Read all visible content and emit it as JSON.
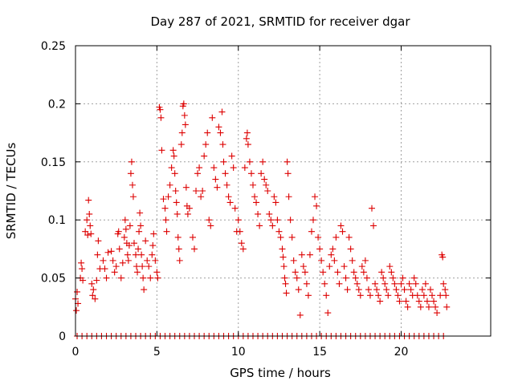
{
  "chart_data": {
    "type": "scatter",
    "title": "Day 287 of 2021, SRMTID for receiver dgar",
    "xlabel": "GPS time / hours",
    "ylabel": "SRMTID / TECUs",
    "xlim": [
      0,
      25.5
    ],
    "ylim": [
      0,
      0.25
    ],
    "xticks": [
      0,
      5,
      10,
      15,
      20
    ],
    "xtick_labels": [
      "0",
      "5",
      "10",
      "15",
      "20"
    ],
    "yticks": [
      0,
      0.05,
      0.1,
      0.15,
      0.2,
      0.25
    ],
    "ytick_labels": [
      "0",
      "0.05",
      "0.1",
      "0.15",
      "0.2",
      "0.25"
    ],
    "grid": true,
    "marker": "+",
    "color": "#dd0000",
    "series": [
      {
        "name": "SRMTID",
        "points": [
          [
            0.0,
            0.032
          ],
          [
            0.05,
            0.022
          ],
          [
            0.1,
            0.038
          ],
          [
            0.15,
            0.028
          ],
          [
            0.3,
            0.05
          ],
          [
            0.35,
            0.063
          ],
          [
            0.4,
            0.058
          ],
          [
            0.45,
            0.048
          ],
          [
            0.6,
            0.09
          ],
          [
            0.7,
            0.1
          ],
          [
            0.75,
            0.087
          ],
          [
            0.8,
            0.117
          ],
          [
            0.85,
            0.105
          ],
          [
            0.9,
            0.095
          ],
          [
            0.95,
            0.088
          ],
          [
            1.0,
            0.045
          ],
          [
            1.05,
            0.035
          ],
          [
            1.1,
            0.04
          ],
          [
            1.2,
            0.032
          ],
          [
            1.3,
            0.048
          ],
          [
            1.35,
            0.07
          ],
          [
            1.4,
            0.082
          ],
          [
            1.5,
            0.058
          ],
          [
            1.7,
            0.065
          ],
          [
            1.8,
            0.058
          ],
          [
            1.9,
            0.05
          ],
          [
            2.0,
            0.072
          ],
          [
            2.2,
            0.073
          ],
          [
            2.3,
            0.065
          ],
          [
            2.4,
            0.055
          ],
          [
            2.5,
            0.06
          ],
          [
            2.6,
            0.088
          ],
          [
            2.65,
            0.09
          ],
          [
            2.7,
            0.075
          ],
          [
            2.8,
            0.05
          ],
          [
            2.9,
            0.063
          ],
          [
            3.0,
            0.085
          ],
          [
            3.05,
            0.1
          ],
          [
            3.1,
            0.092
          ],
          [
            3.15,
            0.08
          ],
          [
            3.2,
            0.07
          ],
          [
            3.25,
            0.065
          ],
          [
            3.3,
            0.078
          ],
          [
            3.35,
            0.095
          ],
          [
            3.4,
            0.14
          ],
          [
            3.45,
            0.15
          ],
          [
            3.5,
            0.13
          ],
          [
            3.55,
            0.12
          ],
          [
            3.6,
            0.08
          ],
          [
            3.7,
            0.07
          ],
          [
            3.75,
            0.06
          ],
          [
            3.8,
            0.055
          ],
          [
            3.85,
            0.075
          ],
          [
            3.9,
            0.09
          ],
          [
            3.95,
            0.106
          ],
          [
            4.0,
            0.095
          ],
          [
            4.05,
            0.07
          ],
          [
            4.1,
            0.06
          ],
          [
            4.15,
            0.05
          ],
          [
            4.2,
            0.04
          ],
          [
            4.3,
            0.082
          ],
          [
            4.4,
            0.065
          ],
          [
            4.5,
            0.06
          ],
          [
            4.6,
            0.05
          ],
          [
            4.7,
            0.07
          ],
          [
            4.75,
            0.078
          ],
          [
            4.8,
            0.088
          ],
          [
            4.9,
            0.065
          ],
          [
            5.0,
            0.055
          ],
          [
            5.05,
            0.05
          ],
          [
            5.15,
            0.197
          ],
          [
            5.2,
            0.195
          ],
          [
            5.25,
            0.188
          ],
          [
            5.3,
            0.16
          ],
          [
            5.4,
            0.118
          ],
          [
            5.5,
            0.11
          ],
          [
            5.55,
            0.1
          ],
          [
            5.6,
            0.09
          ],
          [
            5.7,
            0.12
          ],
          [
            5.8,
            0.13
          ],
          [
            5.9,
            0.145
          ],
          [
            6.0,
            0.16
          ],
          [
            6.05,
            0.155
          ],
          [
            6.1,
            0.14
          ],
          [
            6.15,
            0.125
          ],
          [
            6.2,
            0.115
          ],
          [
            6.25,
            0.105
          ],
          [
            6.3,
            0.085
          ],
          [
            6.35,
            0.075
          ],
          [
            6.4,
            0.065
          ],
          [
            6.5,
            0.165
          ],
          [
            6.55,
            0.175
          ],
          [
            6.6,
            0.198
          ],
          [
            6.65,
            0.2
          ],
          [
            6.7,
            0.19
          ],
          [
            6.75,
            0.182
          ],
          [
            6.8,
            0.128
          ],
          [
            6.85,
            0.112
          ],
          [
            6.9,
            0.105
          ],
          [
            7.0,
            0.11
          ],
          [
            7.2,
            0.085
          ],
          [
            7.3,
            0.075
          ],
          [
            7.4,
            0.125
          ],
          [
            7.5,
            0.14
          ],
          [
            7.6,
            0.145
          ],
          [
            7.7,
            0.12
          ],
          [
            7.8,
            0.125
          ],
          [
            7.9,
            0.155
          ],
          [
            8.0,
            0.165
          ],
          [
            8.1,
            0.175
          ],
          [
            8.2,
            0.1
          ],
          [
            8.3,
            0.095
          ],
          [
            8.4,
            0.188
          ],
          [
            8.5,
            0.145
          ],
          [
            8.6,
            0.135
          ],
          [
            8.7,
            0.128
          ],
          [
            8.8,
            0.18
          ],
          [
            8.9,
            0.175
          ],
          [
            9.0,
            0.193
          ],
          [
            9.05,
            0.165
          ],
          [
            9.1,
            0.15
          ],
          [
            9.2,
            0.14
          ],
          [
            9.3,
            0.13
          ],
          [
            9.4,
            0.12
          ],
          [
            9.5,
            0.115
          ],
          [
            9.6,
            0.155
          ],
          [
            9.7,
            0.145
          ],
          [
            9.8,
            0.11
          ],
          [
            9.9,
            0.09
          ],
          [
            10.0,
            0.1
          ],
          [
            10.1,
            0.09
          ],
          [
            10.2,
            0.08
          ],
          [
            10.3,
            0.075
          ],
          [
            10.4,
            0.145
          ],
          [
            10.5,
            0.17
          ],
          [
            10.55,
            0.175
          ],
          [
            10.6,
            0.165
          ],
          [
            10.7,
            0.15
          ],
          [
            10.8,
            0.14
          ],
          [
            10.9,
            0.13
          ],
          [
            11.0,
            0.12
          ],
          [
            11.1,
            0.115
          ],
          [
            11.2,
            0.105
          ],
          [
            11.3,
            0.095
          ],
          [
            11.4,
            0.14
          ],
          [
            11.5,
            0.15
          ],
          [
            11.6,
            0.135
          ],
          [
            11.7,
            0.13
          ],
          [
            11.8,
            0.125
          ],
          [
            11.9,
            0.105
          ],
          [
            12.0,
            0.1
          ],
          [
            12.1,
            0.095
          ],
          [
            12.2,
            0.12
          ],
          [
            12.3,
            0.115
          ],
          [
            12.4,
            0.1
          ],
          [
            12.5,
            0.09
          ],
          [
            12.6,
            0.085
          ],
          [
            12.7,
            0.075
          ],
          [
            12.75,
            0.068
          ],
          [
            12.8,
            0.06
          ],
          [
            12.85,
            0.05
          ],
          [
            12.9,
            0.045
          ],
          [
            12.95,
            0.037
          ],
          [
            13.0,
            0.15
          ],
          [
            13.05,
            0.14
          ],
          [
            13.1,
            0.12
          ],
          [
            13.2,
            0.1
          ],
          [
            13.3,
            0.085
          ],
          [
            13.4,
            0.065
          ],
          [
            13.5,
            0.055
          ],
          [
            13.6,
            0.05
          ],
          [
            13.7,
            0.04
          ],
          [
            13.8,
            0.018
          ],
          [
            13.9,
            0.07
          ],
          [
            14.0,
            0.06
          ],
          [
            14.1,
            0.055
          ],
          [
            14.2,
            0.045
          ],
          [
            14.3,
            0.035
          ],
          [
            14.4,
            0.07
          ],
          [
            14.5,
            0.09
          ],
          [
            14.6,
            0.1
          ],
          [
            14.7,
            0.12
          ],
          [
            14.8,
            0.112
          ],
          [
            14.9,
            0.085
          ],
          [
            15.0,
            0.075
          ],
          [
            15.1,
            0.065
          ],
          [
            15.2,
            0.055
          ],
          [
            15.3,
            0.045
          ],
          [
            15.4,
            0.035
          ],
          [
            15.5,
            0.02
          ],
          [
            15.6,
            0.06
          ],
          [
            15.7,
            0.07
          ],
          [
            15.8,
            0.075
          ],
          [
            15.9,
            0.065
          ],
          [
            16.0,
            0.085
          ],
          [
            16.1,
            0.055
          ],
          [
            16.2,
            0.045
          ],
          [
            16.3,
            0.095
          ],
          [
            16.4,
            0.09
          ],
          [
            16.5,
            0.06
          ],
          [
            16.6,
            0.05
          ],
          [
            16.7,
            0.04
          ],
          [
            16.8,
            0.085
          ],
          [
            16.9,
            0.075
          ],
          [
            17.0,
            0.065
          ],
          [
            17.1,
            0.055
          ],
          [
            17.2,
            0.05
          ],
          [
            17.3,
            0.045
          ],
          [
            17.4,
            0.04
          ],
          [
            17.5,
            0.035
          ],
          [
            17.6,
            0.06
          ],
          [
            17.7,
            0.055
          ],
          [
            17.8,
            0.065
          ],
          [
            17.9,
            0.05
          ],
          [
            18.0,
            0.04
          ],
          [
            18.1,
            0.035
          ],
          [
            18.2,
            0.11
          ],
          [
            18.3,
            0.095
          ],
          [
            18.4,
            0.045
          ],
          [
            18.5,
            0.04
          ],
          [
            18.6,
            0.035
          ],
          [
            18.7,
            0.03
          ],
          [
            18.8,
            0.055
          ],
          [
            18.9,
            0.05
          ],
          [
            19.0,
            0.045
          ],
          [
            19.1,
            0.04
          ],
          [
            19.2,
            0.035
          ],
          [
            19.3,
            0.06
          ],
          [
            19.4,
            0.055
          ],
          [
            19.5,
            0.05
          ],
          [
            19.6,
            0.045
          ],
          [
            19.7,
            0.04
          ],
          [
            19.8,
            0.035
          ],
          [
            19.9,
            0.03
          ],
          [
            20.0,
            0.045
          ],
          [
            20.1,
            0.05
          ],
          [
            20.2,
            0.04
          ],
          [
            20.3,
            0.03
          ],
          [
            20.4,
            0.025
          ],
          [
            20.5,
            0.045
          ],
          [
            20.6,
            0.04
          ],
          [
            20.7,
            0.035
          ],
          [
            20.8,
            0.05
          ],
          [
            20.9,
            0.045
          ],
          [
            21.0,
            0.035
          ],
          [
            21.1,
            0.03
          ],
          [
            21.2,
            0.025
          ],
          [
            21.3,
            0.04
          ],
          [
            21.4,
            0.035
          ],
          [
            21.5,
            0.045
          ],
          [
            21.6,
            0.03
          ],
          [
            21.7,
            0.025
          ],
          [
            21.8,
            0.04
          ],
          [
            21.9,
            0.035
          ],
          [
            22.0,
            0.03
          ],
          [
            22.1,
            0.025
          ],
          [
            22.2,
            0.02
          ],
          [
            22.4,
            0.035
          ],
          [
            22.5,
            0.07
          ],
          [
            22.55,
            0.068
          ],
          [
            22.6,
            0.045
          ],
          [
            22.7,
            0.04
          ],
          [
            22.75,
            0.035
          ],
          [
            22.8,
            0.025
          ]
        ],
        "zero_x": [
          0.1,
          0.4,
          0.7,
          1.0,
          1.3,
          1.6,
          1.9,
          2.2,
          2.5,
          2.8,
          3.1,
          3.4,
          3.7,
          4.0,
          4.3,
          4.6,
          4.9,
          5.2,
          5.5,
          5.8,
          6.1,
          6.4,
          6.7,
          7.0,
          7.3,
          7.6,
          7.9,
          8.2,
          8.5,
          8.8,
          9.1,
          9.4,
          9.7,
          10.0,
          10.3,
          10.6,
          10.9,
          11.2,
          11.5,
          11.8,
          12.1,
          12.4,
          12.7,
          13.0,
          13.3,
          13.6,
          13.9,
          14.2,
          14.5,
          14.8,
          15.1,
          15.4,
          15.7,
          16.0,
          16.3,
          16.6,
          16.9,
          17.2,
          17.5,
          17.8,
          18.1,
          18.4,
          18.7,
          19.0,
          19.3,
          19.6,
          19.9,
          20.2,
          20.5,
          20.8,
          21.1,
          21.4,
          21.7,
          22.0,
          22.3,
          22.6
        ]
      }
    ]
  }
}
